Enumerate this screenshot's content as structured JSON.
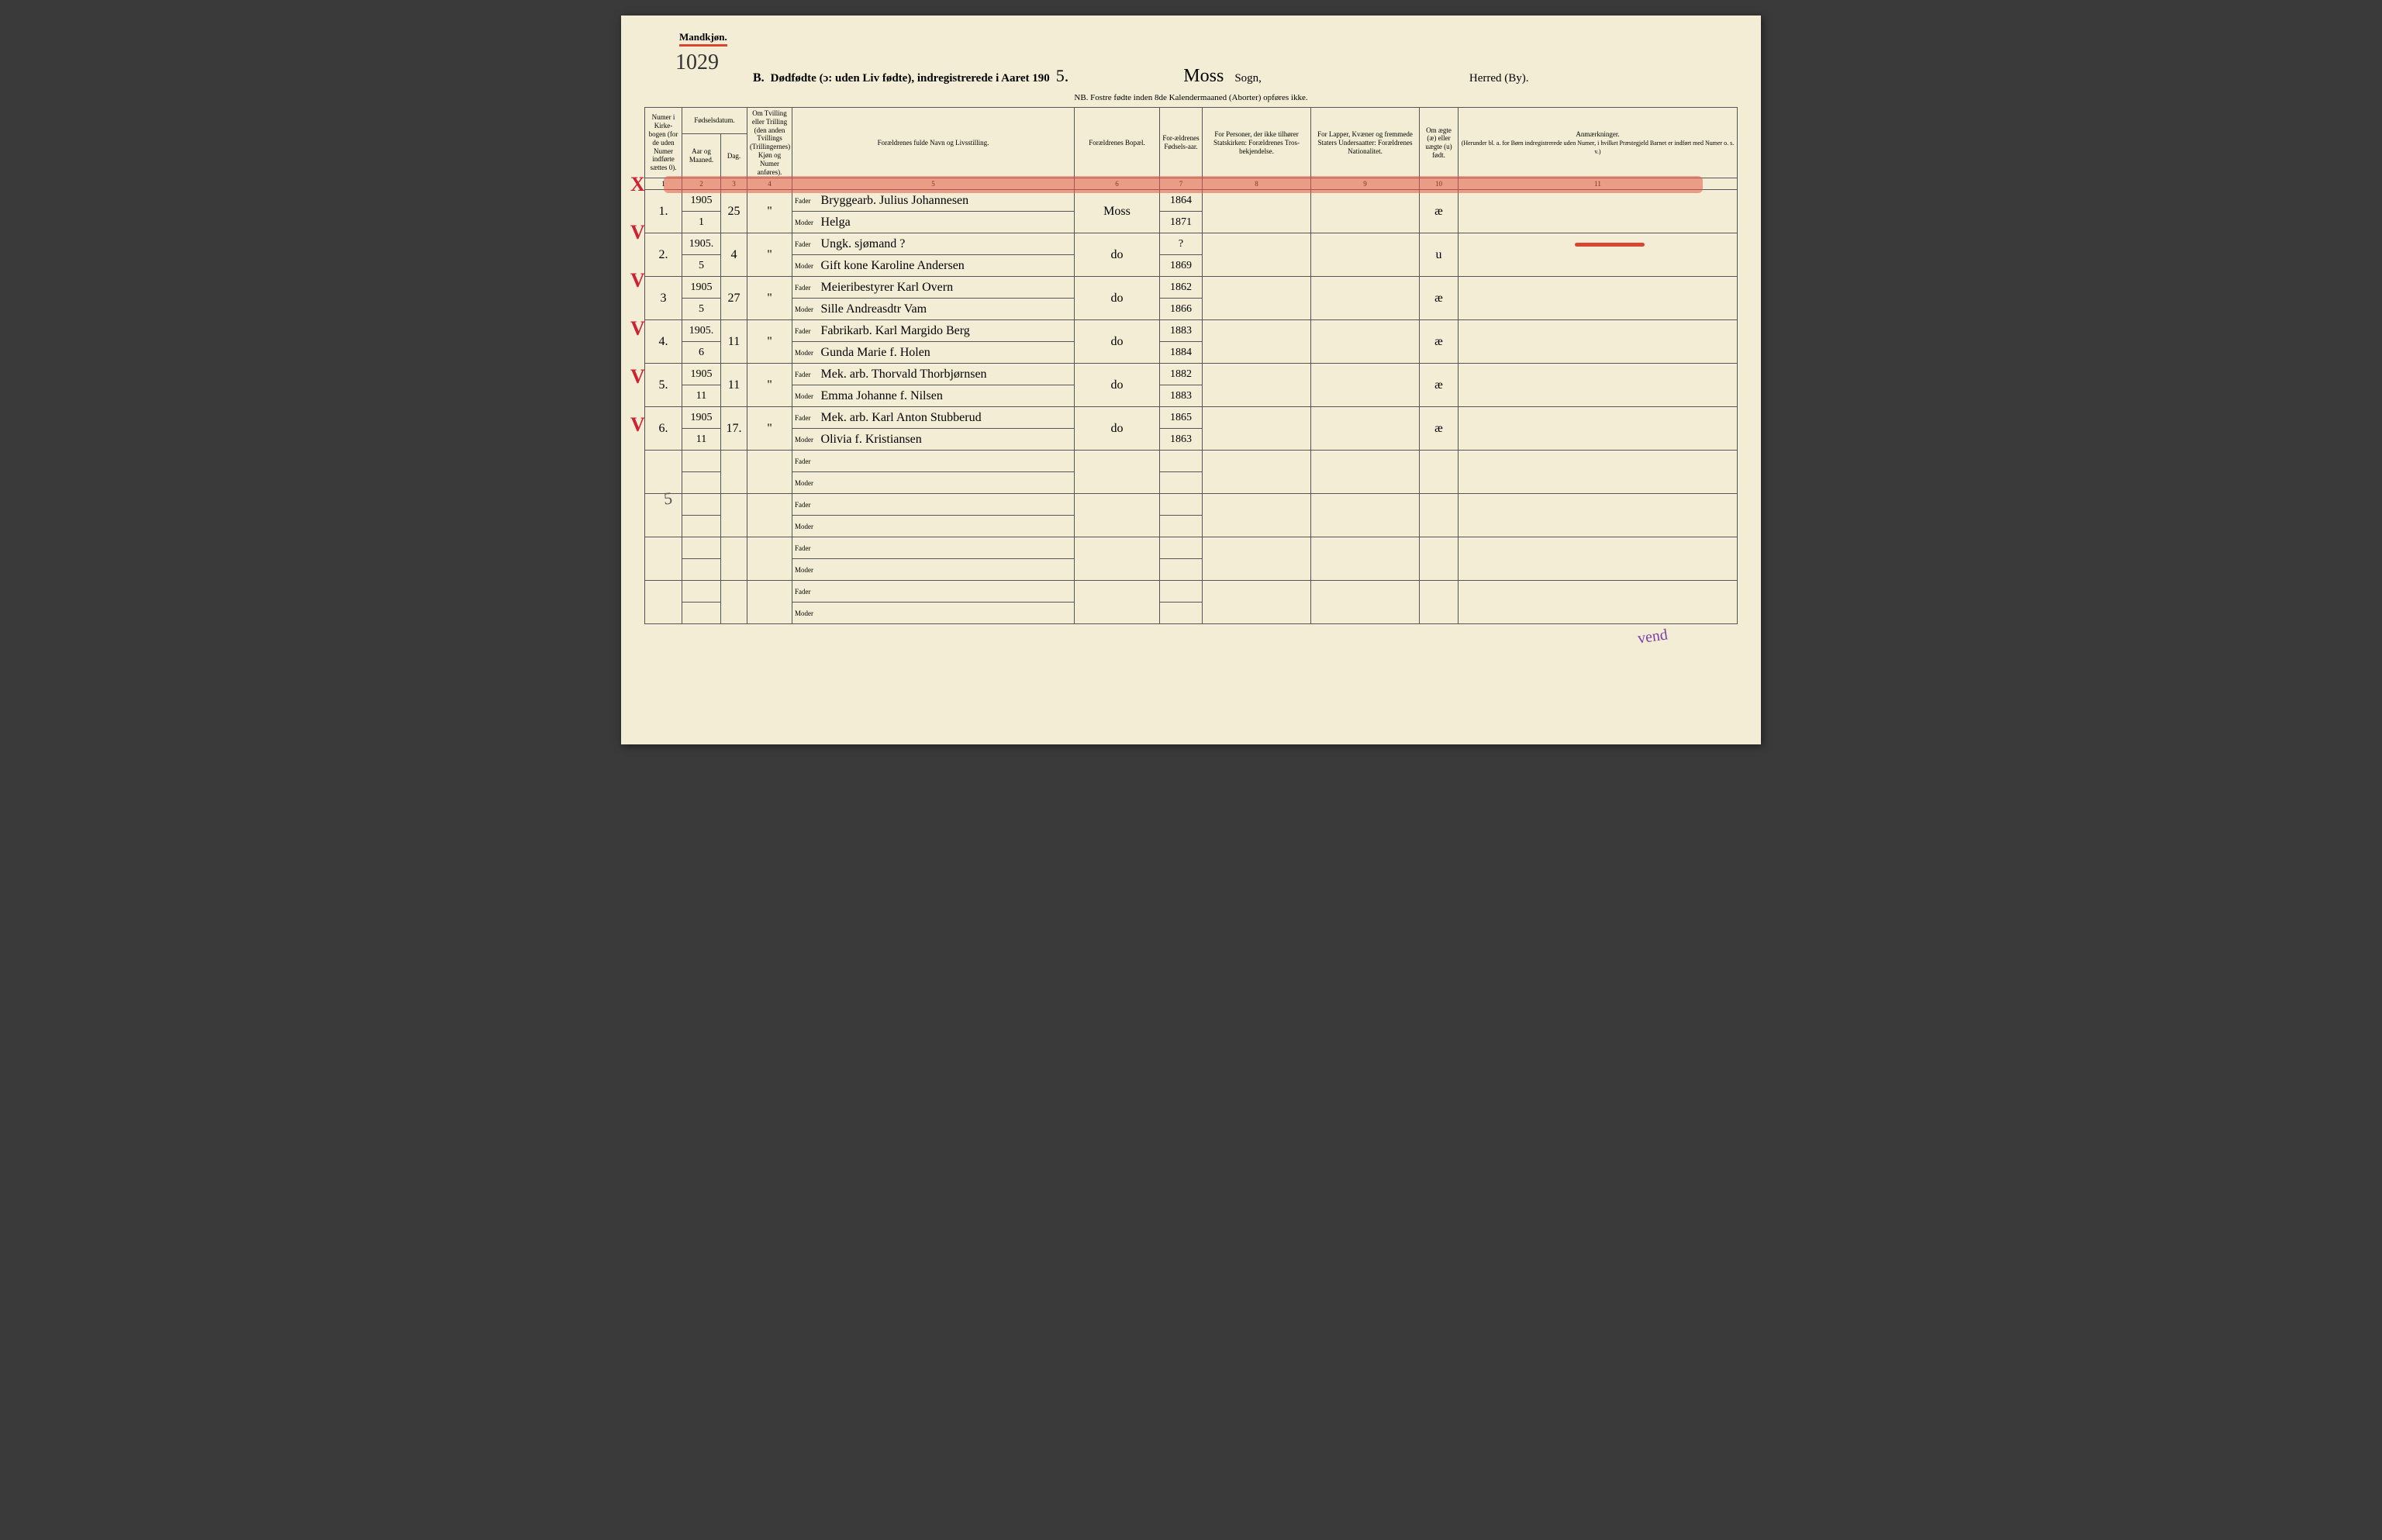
{
  "header": {
    "gender_label": "Mandkjøn.",
    "page_number": "1029",
    "title_prefix": "B.",
    "title_main": "Dødfødte (ɔ: uden Liv fødte), indregistrerede i Aaret 190",
    "year_suffix": "5.",
    "parish_hand": "Moss",
    "parish_label": "Sogn,",
    "district_label": "Herred (By).",
    "nb_line": "NB.  Fostre fødte inden 8de Kalendermaaned (Aborter) opføres ikke."
  },
  "columns": {
    "c1": "Numer i Kirke-bogen (for de uden Numer indførte sættes 0).",
    "c2_top": "Fødselsdatum.",
    "c2a": "Aar og Maaned.",
    "c2b": "Dag.",
    "c4": "Om Tvilling eller Trilling (den anden Tvillings (Trillingernes) Kjøn og Numer anføres).",
    "c5": "Forældrenes fulde Navn og Livsstilling.",
    "c6": "Forældrenes Bopæl.",
    "c7": "For-ældrenes Fødsels-aar.",
    "c8": "For Personer, der ikke tilhører Statskirken: Forældrenes Tros-bekjendelse.",
    "c9": "For Lapper, Kvæner og fremmede Staters Undersaatter: Forældrenes Nationalitet.",
    "c10": "Om ægte (æ) eller uægte (u) født.",
    "c11": "Anmærkninger.",
    "c11_sub": "(Herunder bl. a. for Børn indregistrerede uden Numer, i hvilket Præstegjeld Barnet er indført med Numer o. s. v.)",
    "nums": [
      "1",
      "2",
      "3",
      "4",
      "5",
      "6",
      "7",
      "8",
      "9",
      "10",
      "11"
    ],
    "fader": "Fader",
    "moder": "Moder"
  },
  "rows": [
    {
      "mark": "X",
      "mark_color": "#c23",
      "num": "1.",
      "year_month_f": "1905",
      "year_month_m": "1",
      "day": "25",
      "twin": "\"",
      "fader": "Bryggearb. Julius Johannesen",
      "moder": "Helga",
      "bopael": "Moss",
      "faar_f": "1864",
      "faar_m": "1871",
      "aegte": "æ",
      "strike": true
    },
    {
      "mark": "V",
      "mark_color": "#c23",
      "num": "2.",
      "year_month_f": "1905.",
      "year_month_m": "5",
      "day": "4",
      "twin": "\"",
      "fader": "Ungk. sjømand ?",
      "moder": "Gift kone Karoline Andersen",
      "bopael": "do",
      "faar_f": "?",
      "faar_m": "1869",
      "aegte": "u",
      "red_note": true
    },
    {
      "mark": "V",
      "mark_color": "#c23",
      "num": "3",
      "year_month_f": "1905",
      "year_month_m": "5",
      "day": "27",
      "twin": "\"",
      "fader": "Meieribestyrer Karl Overn",
      "moder": "Sille Andreasdtr Vam",
      "bopael": "do",
      "faar_f": "1862",
      "faar_m": "1866",
      "aegte": "æ"
    },
    {
      "mark": "V",
      "mark_color": "#c23",
      "num": "4.",
      "year_month_f": "1905.",
      "year_month_m": "6",
      "day": "11",
      "twin": "\"",
      "fader": "Fabrikarb. Karl Margido Berg",
      "moder": "Gunda Marie f. Holen",
      "bopael": "do",
      "faar_f": "1883",
      "faar_m": "1884",
      "aegte": "æ"
    },
    {
      "mark": "V",
      "mark_color": "#c23",
      "num": "5.",
      "year_month_f": "1905",
      "year_month_m": "11",
      "day": "11",
      "twin": "\"",
      "fader": "Mek. arb. Thorvald Thorbjørnsen",
      "moder": "Emma Johanne f. Nilsen",
      "bopael": "do",
      "faar_f": "1882",
      "faar_m": "1883",
      "aegte": "æ"
    },
    {
      "mark": "V",
      "mark_color": "#c23",
      "num": "6.",
      "year_month_f": "1905",
      "year_month_m": "11",
      "day": "17.",
      "twin": "\"",
      "fader": "Mek. arb. Karl Anton Stubberud",
      "moder": "Olivia f. Kristiansen",
      "bopael": "do",
      "faar_f": "1865",
      "faar_m": "1863",
      "aegte": "æ"
    },
    {
      "empty": true
    },
    {
      "empty": true
    },
    {
      "empty": true
    },
    {
      "empty": true
    }
  ],
  "marginalia": {
    "diag_five": "5",
    "purple_sig": "vend"
  },
  "colors": {
    "paper": "#f2edd4",
    "ink": "#2b2b2b",
    "red": "#d94530",
    "red_crayon": "rgba(230,90,70,0.55)",
    "purple": "#7a3fa8"
  }
}
